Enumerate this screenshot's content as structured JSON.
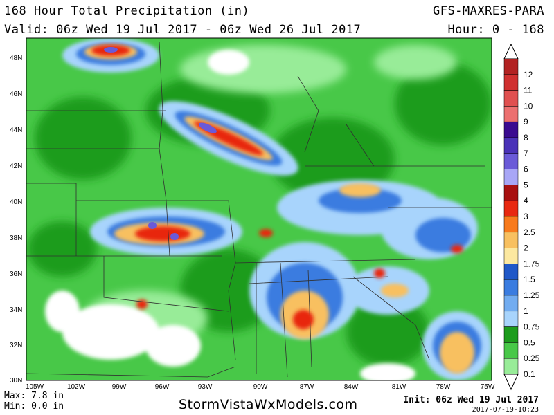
{
  "header": {
    "title": "168 Hour Total Precipitation (in)",
    "valid": "Valid: 06z Wed 19 Jul 2017 - 06z Wed 26 Jul 2017",
    "model": "GFS-MAXRES-PARA",
    "hours": "Hour: 0 - 168"
  },
  "map": {
    "lat_labels": [
      "48N",
      "46N",
      "44N",
      "42N",
      "40N",
      "38N",
      "36N",
      "34N",
      "32N",
      "30N"
    ],
    "lon_labels": [
      "105W",
      "102W",
      "99W",
      "96W",
      "93W",
      "90W",
      "87W",
      "84W",
      "81W",
      "78W",
      "75W"
    ]
  },
  "legend": {
    "levels": [
      {
        "label": "12",
        "color": "#b22222"
      },
      {
        "label": "11",
        "color": "#d03030"
      },
      {
        "label": "10",
        "color": "#e05050"
      },
      {
        "label": "9",
        "color": "#ec7070"
      },
      {
        "label": "8",
        "color": "#3a0a90"
      },
      {
        "label": "7",
        "color": "#4a32b8"
      },
      {
        "label": "6",
        "color": "#6a5ad8"
      },
      {
        "label": "5",
        "color": "#a8a6f6"
      },
      {
        "label": "4",
        "color": "#a81010"
      },
      {
        "label": "3",
        "color": "#e82810"
      },
      {
        "label": "2.5",
        "color": "#f87a1c"
      },
      {
        "label": "2",
        "color": "#f8c060"
      },
      {
        "label": "1.75",
        "color": "#fce8a0"
      },
      {
        "label": "1.5",
        "color": "#2058c8"
      },
      {
        "label": "1.25",
        "color": "#3a7ce0"
      },
      {
        "label": "1",
        "color": "#72acf0"
      },
      {
        "label": "0.75",
        "color": "#a8d4fc"
      },
      {
        "label": "0.5",
        "color": "#1c9c1c"
      },
      {
        "label": "0.25",
        "color": "#48c848"
      },
      {
        "label": "0.1",
        "color": "#98ec98"
      }
    ]
  },
  "footer": {
    "max": "Max: 7.8 in",
    "min": "Min: 0.0 in",
    "site": "StormVistaWxModels.com",
    "init": "Init: 06z Wed 19 Jul 2017",
    "stamp": "2017-07-19-10:23"
  },
  "colors": {
    "land_base": "#48c848",
    "no_precip": "#ffffff",
    "boundaries": "#303030"
  }
}
